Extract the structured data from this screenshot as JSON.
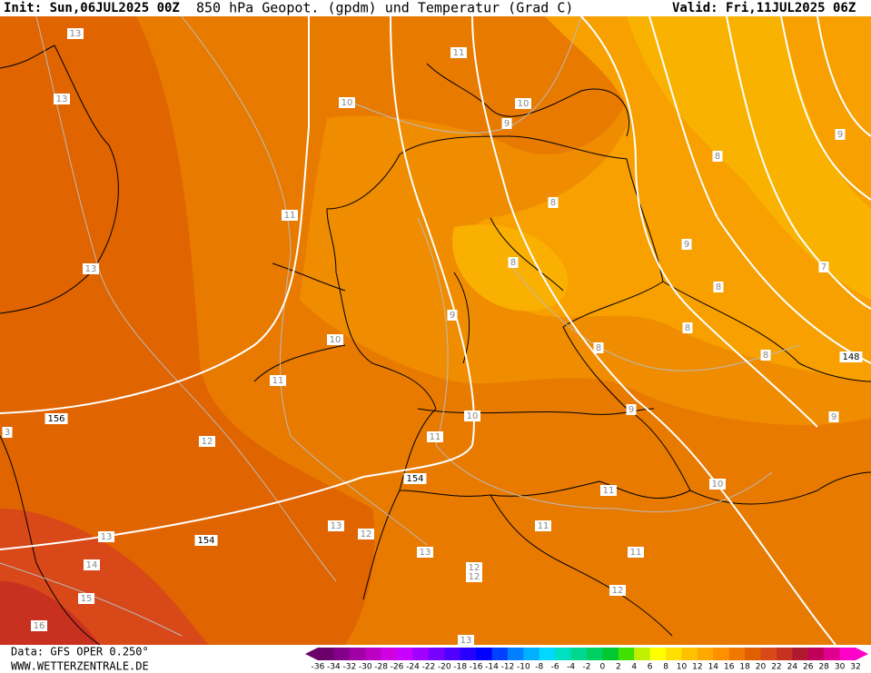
{
  "header": {
    "init": "Init: Sun,06JUL2025 00Z",
    "title": "850 hPa Geopot. (gpdm) und Temperatur (Grad C)",
    "valid": "Valid: Fri,11JUL2025 06Z"
  },
  "footer": {
    "data": "Data: GFS OPER 0.250°",
    "site": "WWW.WETTERZENTRALE.DE"
  },
  "contour_labels": [
    "13",
    "13",
    "13",
    "11",
    "10",
    "10",
    "9",
    "9",
    "8",
    "8",
    "11",
    "9",
    "8",
    "7",
    "8",
    "9",
    "8",
    "10",
    "8",
    "8",
    "148",
    "11",
    "156",
    "10",
    "9",
    "9",
    "3",
    "11",
    "12",
    "154",
    "10",
    "11",
    "13",
    "12",
    "11",
    "13",
    "154",
    "13",
    "11",
    "14",
    "12",
    "12",
    "15",
    "12",
    "16",
    "13"
  ],
  "colorbar": {
    "labels": [
      -36,
      -34,
      -32,
      -30,
      -28,
      -26,
      -24,
      -22,
      -20,
      -18,
      -16,
      -14,
      -12,
      -10,
      -8,
      -6,
      -4,
      -2,
      0,
      2,
      4,
      6,
      8,
      10,
      12,
      14,
      16,
      18,
      20,
      22,
      24,
      26,
      28,
      30,
      32
    ],
    "colors": [
      "#6b006b",
      "#85008a",
      "#a000a6",
      "#bb00c4",
      "#d000e0",
      "#c800ff",
      "#a000ff",
      "#7800ff",
      "#5000ff",
      "#2800ff",
      "#0000ff",
      "#0040ff",
      "#0080ff",
      "#00b0ff",
      "#00d8ff",
      "#00e0c0",
      "#00d890",
      "#00d060",
      "#00c830",
      "#40e000",
      "#c0f000",
      "#ffff00",
      "#ffe000",
      "#ffc000",
      "#ffa800",
      "#ff9000",
      "#f07800",
      "#e06000",
      "#d84818",
      "#c83020",
      "#b01830",
      "#c00058",
      "#e00090",
      "#ff00c8"
    ]
  }
}
